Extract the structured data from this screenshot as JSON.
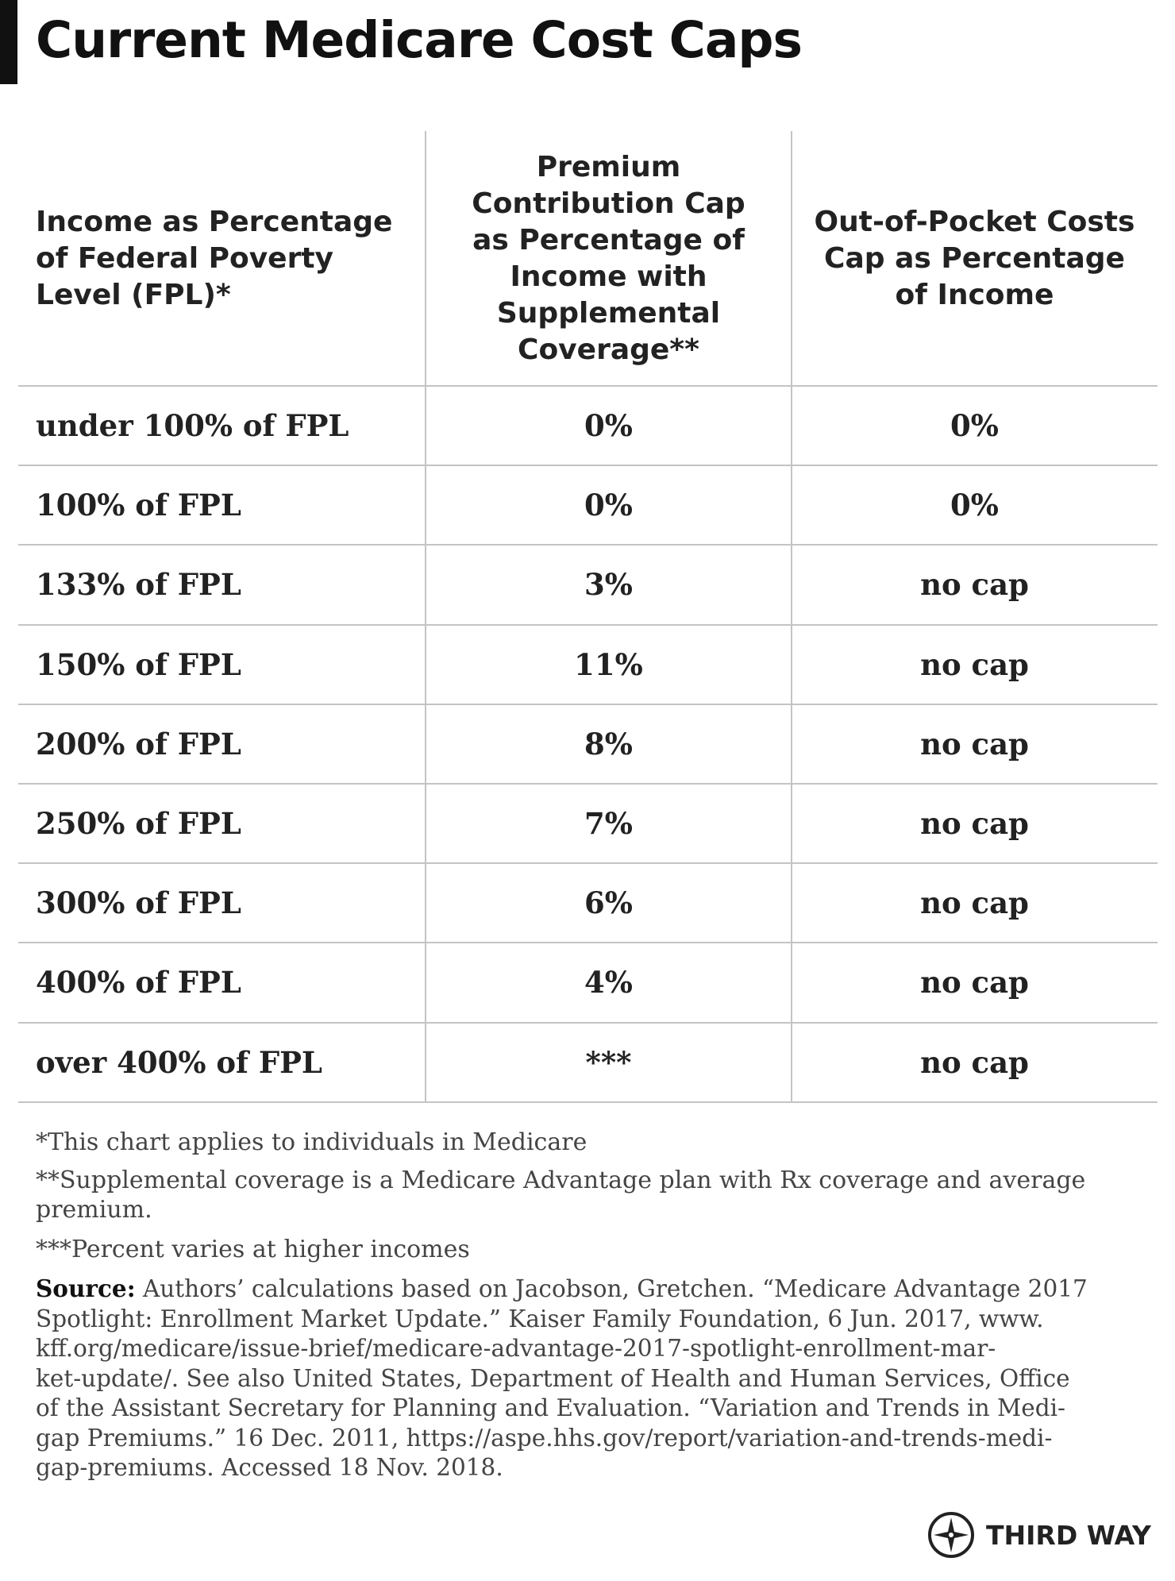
{
  "header": {
    "title": "Current Medicare Cost Caps"
  },
  "table": {
    "columns": [
      "Income as Percentage of Federal Poverty Level (FPL)*",
      "Premium Contribution Cap as Percentage of Income with Supplemental Coverage**",
      "Out-of-Pocket Costs Cap as Percentage of Income"
    ],
    "rows": [
      [
        "under 100% of FPL",
        "0%",
        "0%"
      ],
      [
        "100% of FPL",
        "0%",
        "0%"
      ],
      [
        "133% of FPL",
        "3%",
        "no cap"
      ],
      [
        "150% of FPL",
        "11%",
        "no cap"
      ],
      [
        "200% of FPL",
        "8%",
        "no cap"
      ],
      [
        "250% of FPL",
        "7%",
        "no cap"
      ],
      [
        "300% of FPL",
        "6%",
        "no cap"
      ],
      [
        "400% of FPL",
        "4%",
        "no cap"
      ],
      [
        "over 400% of FPL",
        "***",
        "no cap"
      ]
    ]
  },
  "footnotes": [
    "*This chart applies to individuals in Medicare",
    "**Supplemental coverage is a Medicare Advantage plan with Rx coverage and average premium.",
    "***Percent varies at higher incomes"
  ],
  "source": {
    "label": "Source:",
    "lines": [
      "Authors’ calculations based on Jacobson, Gretchen. “Medicare Advantage 2017",
      "Spotlight: Enrollment Market Update.” Kaiser Family Foundation, 6 Jun. 2017, www.",
      "kff.org/medicare/issue-brief/medicare-advantage-2017-spotlight-enrollment-mar-",
      "ket-update/. See also United States, Department of Health and Human Services, Office",
      "of the Assistant Secretary for Planning and Evaluation. “Variation and Trends in Medi-",
      "gap Premiums.” 16 Dec. 2011, https://aspe.hhs.gov/report/variation-and-trends-medi-",
      "gap-premiums. Accessed 18 Nov. 2018."
    ]
  },
  "logo": {
    "text": "THIRD WAY"
  }
}
